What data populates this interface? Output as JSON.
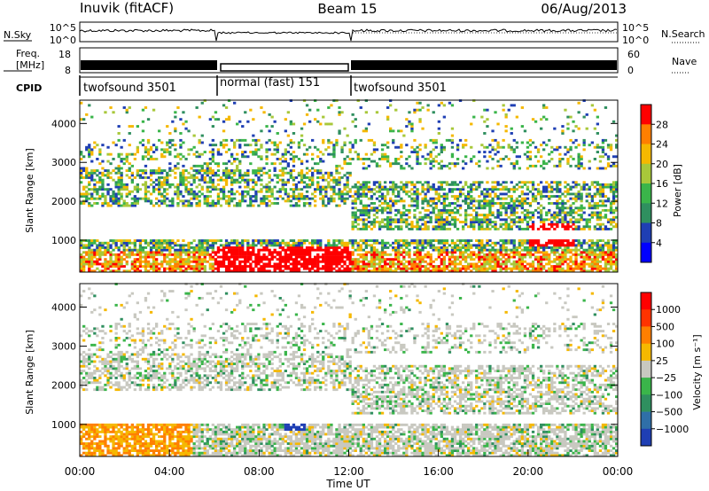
{
  "header": {
    "station": "Inuvik (fitACF)",
    "beam": "Beam 15",
    "date": "06/Aug/2013"
  },
  "summary_panels": {
    "noise": {
      "left_label": "N.Sky",
      "right_label": "N.Search",
      "left_ticks": [
        "10^5",
        "10^0"
      ],
      "right_ticks": [
        "10^5",
        "10^0"
      ]
    },
    "freq": {
      "left_label_line1": "Freq.",
      "left_label_line2": "[MHz]",
      "left_ticks": [
        "8",
        "18"
      ],
      "right_label": "Nave",
      "right_ticks": [
        "60",
        "0"
      ]
    },
    "cpid": {
      "label": "CPID",
      "segments": [
        {
          "name": "twofsound 3501",
          "start_hour": 0,
          "end_hour": 6
        },
        {
          "name": "normal (fast) 151",
          "start_hour": 6,
          "end_hour": 12
        },
        {
          "name": "twofsound 3501",
          "start_hour": 12,
          "end_hour": 24
        }
      ]
    }
  },
  "chart_data": [
    {
      "type": "heatmap",
      "name": "power",
      "ylabel": "Slant Range [km]",
      "ylim": [
        180,
        4600
      ],
      "y_ticks": [
        1000,
        2000,
        3000,
        4000
      ],
      "xlim": [
        0,
        24
      ],
      "colorbar": {
        "label": "Power [dB]",
        "range": [
          0,
          32
        ],
        "tick_values": [
          4,
          8,
          12,
          16,
          20,
          24,
          28
        ],
        "tick_labels": [
          "4",
          "8",
          "12",
          "16",
          "20",
          "24",
          "28"
        ],
        "colors": [
          "#0000ff",
          "#1f3fb4",
          "#2f8f5f",
          "#3ab54a",
          "#a8c83a",
          "#f5b800",
          "#ff7f00",
          "#ff0000"
        ]
      }
    },
    {
      "type": "heatmap",
      "name": "velocity",
      "ylabel": "Slant Range [km]",
      "ylim": [
        180,
        4600
      ],
      "y_ticks": [
        1000,
        2000,
        3000,
        4000
      ],
      "xlim": [
        0,
        24
      ],
      "xlabel": "Time UT",
      "x_ticks": [
        0,
        4,
        8,
        12,
        16,
        20,
        24
      ],
      "x_tick_labels": [
        "00:00",
        "04:00",
        "08:00",
        "12:00",
        "16:00",
        "20:00",
        "00:00"
      ],
      "colorbar": {
        "label": "Velocity [m s⁻¹]",
        "tick_labels": [
          "1000",
          "500",
          "100",
          "25",
          "−25",
          "−100",
          "−500",
          "−1000"
        ],
        "colors": [
          "#1f3fb4",
          "#2f6fa8",
          "#2f8f5f",
          "#3ab54a",
          "#c8c8c0",
          "#f5b800",
          "#ff7f00",
          "#ff3300",
          "#ff0000"
        ]
      }
    }
  ]
}
